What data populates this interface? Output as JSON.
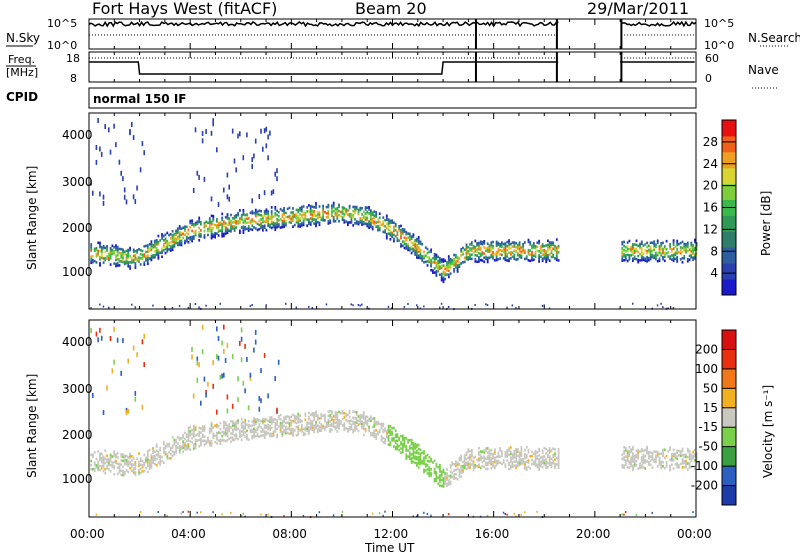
{
  "header": {
    "radar": "Fort Hays West (fitACF)",
    "beam": "Beam 20",
    "date": "29/Mar/2011"
  },
  "noise_panel": {
    "left_label": "N.Sky",
    "left_ticks": [
      "10^5",
      "10^0"
    ],
    "right_ticks": [
      "10^5",
      "10^0"
    ],
    "right_label": "N.Search"
  },
  "freq_panel": {
    "left_label_1": "Freq.",
    "left_label_2": "[MHz]",
    "left_ticks": [
      "18",
      "8"
    ],
    "right_ticks": [
      "60",
      "0"
    ],
    "right_label": "Nave"
  },
  "cpid_panel": {
    "label": "CPID",
    "mode": "normal 150 IF"
  },
  "chart_data": [
    {
      "type": "heatmap",
      "name": "power",
      "ylabel": "Slant Range [km]",
      "yticks": [
        "4000",
        "3000",
        "2000",
        "1000"
      ],
      "ylim": [
        180,
        4500
      ],
      "colorbar_label": "Power [dB]",
      "colorbar_ticks": [
        "28",
        "24",
        "20",
        "16",
        "12",
        "8",
        "4"
      ],
      "colorbar_colors": [
        "#1a1acc",
        "#2a3fb0",
        "#2d5fa0",
        "#2e7e6a",
        "#2f9a55",
        "#3cb84a",
        "#7ccf3a",
        "#d8d430",
        "#f0a020",
        "#f06018",
        "#e81010"
      ],
      "echo_band_center_km": [
        1400,
        1350,
        1300,
        1320,
        1900,
        2100,
        2200,
        2300,
        2200,
        1900,
        1500,
        1000,
        1450,
        1450,
        1450,
        1450
      ],
      "echo_band_hours": [
        0,
        1,
        1.6,
        2,
        4,
        6,
        8,
        10,
        11,
        12,
        13,
        14,
        15,
        16,
        18.5,
        22
      ]
    },
    {
      "type": "heatmap",
      "name": "velocity",
      "ylabel": "Slant Range [km]",
      "yticks": [
        "4000",
        "3000",
        "2000",
        "1000"
      ],
      "ylim": [
        180,
        4500
      ],
      "colorbar_label": "Velocity [m s⁻¹]",
      "colorbar_ticks": [
        "200",
        "100",
        "50",
        "15",
        "-15",
        "-50",
        "-100",
        "-200"
      ],
      "colorbar_colors": [
        "#1c3aa8",
        "#2b5fc0",
        "#3aa040",
        "#7ad04a",
        "#c8c8c0",
        "#f0b020",
        "#f07818",
        "#e83010",
        "#d81010"
      ]
    }
  ],
  "xaxis": {
    "label": "Time UT",
    "ticks": [
      "00:00",
      "04:00",
      "08:00",
      "12:00",
      "16:00",
      "20:00",
      "00:00"
    ]
  },
  "data_gaps_hours": [
    [
      18.6,
      21.0
    ]
  ]
}
